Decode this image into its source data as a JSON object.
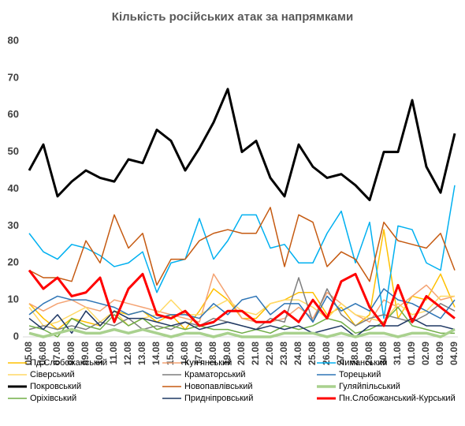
{
  "chart_data": {
    "type": "line",
    "title": "Кількість російських атак за напрямками",
    "categories": [
      "05.08",
      "06.08",
      "07.08",
      "08.08",
      "09.08",
      "10.08",
      "11.08",
      "12.08",
      "13.08",
      "14.08",
      "15.08",
      "16.08",
      "17.08",
      "18.08",
      "19.08",
      "20.08",
      "21.08",
      "22.08",
      "23.08",
      "24.08",
      "25.08",
      "26.08",
      "27.08",
      "28.08",
      "29.08",
      "30.08",
      "31.08",
      "01.09",
      "02.09",
      "03.09",
      "04.09"
    ],
    "ylim": [
      0,
      80
    ],
    "yticks": [
      0,
      10,
      20,
      30,
      40,
      50,
      60,
      70,
      80
    ],
    "grid": false,
    "series": [
      {
        "name": "Пд.Слобожанський",
        "color": "#ffc000",
        "width": 1.5,
        "values": [
          9,
          5,
          2,
          5,
          4,
          3,
          7,
          6,
          7,
          4,
          6,
          2,
          7,
          13,
          10,
          5,
          5,
          9,
          10,
          12,
          12,
          6,
          8,
          3,
          6,
          29,
          5,
          11,
          10,
          17,
          8
        ]
      },
      {
        "name": "Куп'янський",
        "color": "#f4a373",
        "width": 1.5,
        "values": [
          9,
          7,
          9,
          10,
          8,
          7,
          10,
          9,
          8,
          7,
          6,
          5,
          4,
          17,
          11,
          5,
          4,
          4,
          5,
          8,
          5,
          12,
          9,
          6,
          4,
          10,
          8,
          11,
          14,
          10,
          11
        ]
      },
      {
        "name": "Лиманський",
        "color": "#00b0f0",
        "width": 1.5,
        "values": [
          28,
          23,
          21,
          25,
          24,
          22,
          19,
          20,
          23,
          12,
          20,
          21,
          32,
          21,
          26,
          33,
          33,
          24,
          25,
          20,
          20,
          28,
          34,
          20,
          31,
          5,
          30,
          29,
          20,
          18,
          41
        ]
      },
      {
        "name": "Сіверський",
        "color": "#ffd966",
        "width": 1.5,
        "values": [
          8,
          3,
          4,
          6,
          8,
          4,
          7,
          3,
          5,
          6,
          10,
          6,
          6,
          8,
          10,
          7,
          6,
          9,
          10,
          10,
          8,
          5,
          9,
          6,
          5,
          4,
          9,
          6,
          7,
          11,
          11
        ]
      },
      {
        "name": "Краматорський",
        "color": "#7f7f7f",
        "width": 1.5,
        "values": [
          2,
          3,
          2,
          3,
          2,
          4,
          3,
          5,
          2,
          3,
          2,
          4,
          3,
          5,
          4,
          3,
          2,
          5,
          4,
          16,
          4,
          13,
          6,
          3,
          5,
          6,
          5,
          4,
          6,
          9,
          7
        ]
      },
      {
        "name": "Торецький",
        "color": "#2e75b6",
        "width": 1.5,
        "values": [
          6,
          9,
          11,
          10,
          10,
          9,
          8,
          6,
          7,
          5,
          6,
          6,
          5,
          9,
          6,
          10,
          11,
          6,
          9,
          9,
          4,
          11,
          7,
          9,
          7,
          13,
          10,
          9,
          7,
          5,
          10
        ]
      },
      {
        "name": "Покровський",
        "color": "#000000",
        "width": 3,
        "values": [
          45,
          52,
          38,
          42,
          45,
          43,
          42,
          48,
          47,
          56,
          53,
          45,
          51,
          58,
          67,
          50,
          53,
          43,
          38,
          52,
          46,
          43,
          44,
          41,
          37,
          50,
          50,
          64,
          46,
          39,
          55
        ]
      },
      {
        "name": "Новопавлівський",
        "color": "#c55a11",
        "width": 1.5,
        "values": [
          18,
          16,
          16,
          15,
          26,
          20,
          33,
          24,
          28,
          14,
          21,
          21,
          26,
          28,
          29,
          28,
          28,
          35,
          19,
          33,
          31,
          19,
          23,
          21,
          15,
          31,
          26,
          25,
          24,
          28,
          18
        ]
      },
      {
        "name": "Гуляйпільський",
        "color": "#a9d18e",
        "width": 3.5,
        "values": [
          1,
          0,
          1,
          2,
          1,
          1,
          2,
          1,
          2,
          1,
          0,
          1,
          1,
          0,
          1,
          0,
          0,
          0,
          1,
          1,
          1,
          0,
          1,
          0,
          1,
          1,
          0,
          1,
          1,
          0,
          2
        ]
      },
      {
        "name": "Оріхівський",
        "color": "#70ad47",
        "width": 1.5,
        "values": [
          3,
          2,
          0,
          5,
          3,
          2,
          6,
          3,
          5,
          2,
          3,
          2,
          3,
          2,
          2,
          1,
          2,
          1,
          3,
          2,
          3,
          5,
          4,
          1,
          2,
          4,
          8,
          3,
          2,
          1,
          1
        ]
      },
      {
        "name": "Придніпровський",
        "color": "#1f3864",
        "width": 1.5,
        "values": [
          5,
          2,
          6,
          1,
          7,
          3,
          7,
          5,
          5,
          4,
          3,
          4,
          2,
          3,
          4,
          3,
          2,
          3,
          2,
          3,
          1,
          2,
          3,
          0,
          3,
          3,
          3,
          5,
          3,
          3,
          2
        ]
      },
      {
        "name": "Пн.Слобожанський-Курський",
        "color": "#ff0000",
        "width": 3,
        "values": [
          18,
          13,
          16,
          11,
          12,
          16,
          4,
          13,
          17,
          6,
          5,
          7,
          3,
          4,
          7,
          7,
          4,
          4,
          7,
          4,
          10,
          5,
          15,
          17,
          8,
          3,
          14,
          4,
          11,
          8,
          5
        ]
      }
    ]
  }
}
